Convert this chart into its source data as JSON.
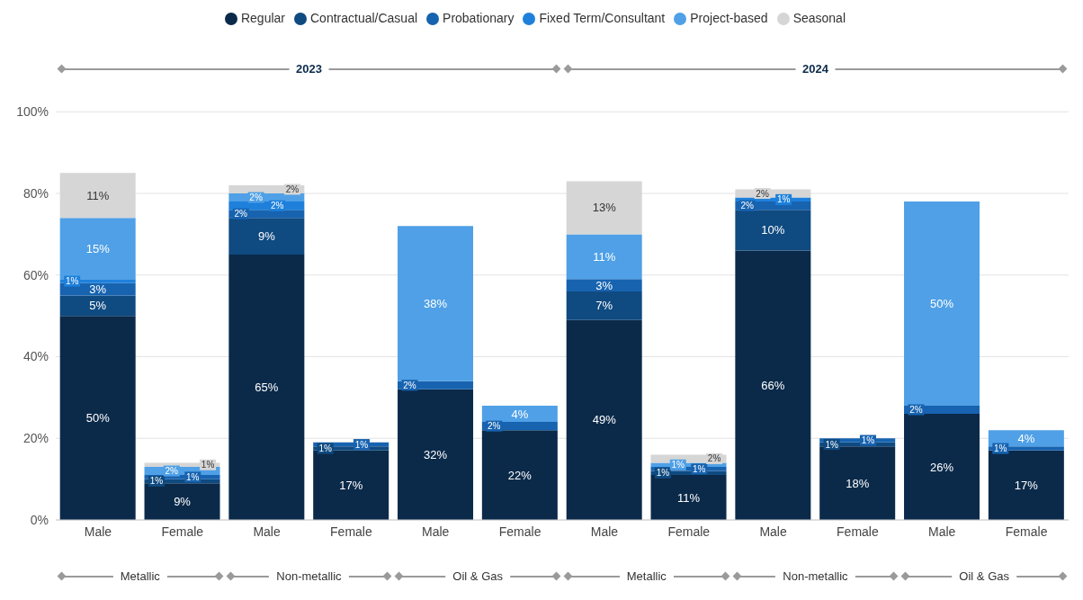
{
  "chart_data": {
    "type": "bar",
    "stacked": true,
    "categories": [
      "Male",
      "Female",
      "Male",
      "Female",
      "Male",
      "Female",
      "Male",
      "Female",
      "Male",
      "Female",
      "Male",
      "Female"
    ],
    "annotations": [
      "2023",
      "2024",
      "Metallic",
      "Non-metallic",
      "Oil & Gas",
      "Metallic",
      "Non-metallic",
      "Oil & Gas"
    ],
    "series": [
      {
        "name": "Regular",
        "color": "#0b2a4a",
        "values": [
          50,
          9,
          65,
          17,
          32,
          22,
          49,
          11,
          66,
          18,
          26,
          17
        ],
        "value_labels": [
          "50%",
          "9%",
          "65%",
          "17%",
          "32%",
          "22%",
          "49%",
          "11%",
          "66%",
          "18%",
          "26%",
          "17%"
        ]
      },
      {
        "name": "Contractual/Casual",
        "color": "#0f4a80",
        "values": [
          5,
          1,
          9,
          1,
          null,
          null,
          7,
          1,
          10,
          1,
          null,
          null
        ],
        "value_labels": [
          "5%",
          "1%",
          "9%",
          "1%",
          null,
          null,
          "7%",
          "1%",
          "10%",
          "1%",
          null,
          null
        ]
      },
      {
        "name": "Probationary",
        "color": "#1763b0",
        "values": [
          3,
          1,
          2,
          1,
          2,
          2,
          3,
          1,
          2,
          1,
          2,
          1
        ],
        "value_labels": [
          "3%",
          "1%",
          "2%",
          "1%",
          "2%",
          "2%",
          "3%",
          "1%",
          "2%",
          "1%",
          "2%",
          "1%"
        ]
      },
      {
        "name": "Fixed Term/Consultant",
        "color": "#1e80db",
        "values": [
          1,
          null,
          2,
          null,
          null,
          null,
          null,
          null,
          1,
          null,
          null,
          null
        ],
        "value_labels": [
          "1%",
          null,
          "2%",
          null,
          null,
          null,
          null,
          null,
          "1%",
          null,
          null,
          null
        ]
      },
      {
        "name": "Project-based",
        "color": "#4fa0e6",
        "values": [
          15,
          2,
          2,
          null,
          38,
          4,
          11,
          1,
          null,
          null,
          50,
          4
        ],
        "value_labels": [
          "15%",
          "2%",
          "2%",
          null,
          "38%",
          "4%",
          "11%",
          "1%",
          null,
          null,
          "50%",
          "4%"
        ]
      },
      {
        "name": "Seasonal",
        "color": "#d6d6d6",
        "values": [
          11,
          1,
          2,
          null,
          null,
          null,
          13,
          2,
          2,
          null,
          null,
          null
        ],
        "value_labels": [
          "11%",
          "1%",
          "2%",
          null,
          null,
          null,
          "13%",
          "2%",
          "2%",
          null,
          null,
          null
        ]
      }
    ],
    "ylim": [
      0,
      100
    ],
    "yticks": [
      {
        "value": 0,
        "label": "0%"
      },
      {
        "value": 20,
        "label": "20%"
      },
      {
        "value": 40,
        "label": "40%"
      },
      {
        "value": 60,
        "label": "60%"
      },
      {
        "value": 80,
        "label": "80%"
      },
      {
        "value": 100,
        "label": "100%"
      }
    ],
    "grid": "y",
    "legend": "top"
  }
}
